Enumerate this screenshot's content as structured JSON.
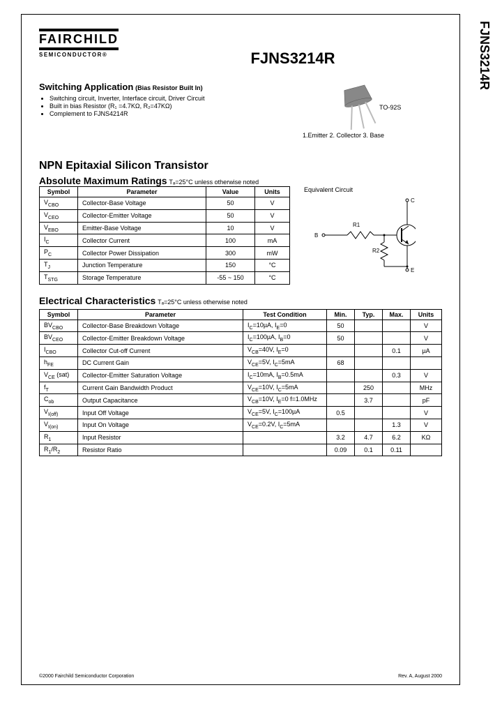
{
  "side_label": "FJNS3214R",
  "logo": {
    "name": "FAIRCHILD",
    "sub": "SEMICONDUCTOR®"
  },
  "part_number": "FJNS3214R",
  "application": {
    "heading": "Switching Application",
    "sub": "(Bias Resistor Built In)",
    "items": [
      "Switching circuit, Inverter, Interface circuit, Driver Circuit",
      "Built in bias Resistor (R₁ =4.7KΩ, R₂=47KΩ)",
      "Complement to FJNS4214R"
    ]
  },
  "package": {
    "name": "TO-92S",
    "pins": "1.Emitter  2. Collector  3. Base"
  },
  "type_heading": "NPN Epitaxial Silicon Transistor",
  "ratings": {
    "heading": "Absolute Maximum Ratings",
    "note": "Tₐ=25°C unless otherwise noted",
    "headers": [
      "Symbol",
      "Parameter",
      "Value",
      "Units"
    ],
    "rows": [
      [
        "V_CBO",
        "Collector-Base Voltage",
        "50",
        "V"
      ],
      [
        "V_CEO",
        "Collector-Emitter Voltage",
        "50",
        "V"
      ],
      [
        "V_EBO",
        "Emitter-Base Voltage",
        "10",
        "V"
      ],
      [
        "I_C",
        "Collector Current",
        "100",
        "mA"
      ],
      [
        "P_C",
        "Collector Power Dissipation",
        "300",
        "mW"
      ],
      [
        "T_J",
        "Junction Temperature",
        "150",
        "°C"
      ],
      [
        "T_STG",
        "Storage Temperature",
        "-55 ~ 150",
        "°C"
      ]
    ]
  },
  "circuit_label": "Equivalent Circuit",
  "elec": {
    "heading": "Electrical Characteristics",
    "note": "Tₐ=25°C unless otherwise noted",
    "headers": [
      "Symbol",
      "Parameter",
      "Test Condition",
      "Min.",
      "Typ.",
      "Max.",
      "Units"
    ],
    "rows": [
      [
        "BV_CBO",
        "Collector-Base Breakdown Voltage",
        "I_C=10µA, I_E=0",
        "50",
        "",
        "",
        "V"
      ],
      [
        "BV_CEO",
        "Collector-Emitter Breakdown Voltage",
        "I_C=100µA, I_B=0",
        "50",
        "",
        "",
        "V"
      ],
      [
        "I_CBO",
        "Collector Cut-off Current",
        "V_CB=40V, I_E=0",
        "",
        "",
        "0.1",
        "µA"
      ],
      [
        "h_FE",
        "DC Current Gain",
        "V_CE=5V, I_C=5mA",
        "68",
        "",
        "",
        ""
      ],
      [
        "V_CE (sat)",
        "Collector-Emitter Saturation Voltage",
        "I_C=10mA, I_B=0.5mA",
        "",
        "",
        "0.3",
        "V"
      ],
      [
        "f_T",
        "Current Gain Bandwidth Product",
        "V_CE=10V, I_C=5mA",
        "",
        "250",
        "",
        "MHz"
      ],
      [
        "C_ob",
        "Output Capacitance",
        "V_CB=10V, I_E=0 f=1.0MHz",
        "",
        "3.7",
        "",
        "pF"
      ],
      [
        "V_I(off)",
        "Input Off Voltage",
        "V_CE=5V, I_C=100µA",
        "0.5",
        "",
        "",
        "V"
      ],
      [
        "V_I(on)",
        "Input On Voltage",
        "V_CE=0.2V, I_C=5mA",
        "",
        "",
        "1.3",
        "V"
      ],
      [
        "R_1",
        "Input Resistor",
        "",
        "3.2",
        "4.7",
        "6.2",
        "KΩ"
      ],
      [
        "R_1/R_2",
        "Resistor Ratio",
        "",
        "0.09",
        "0.1",
        "0.11",
        ""
      ]
    ]
  },
  "footer": {
    "left": "©2000 Fairchild Semiconductor Corporation",
    "right": "Rev. A, August 2000"
  },
  "colors": {
    "pkg_body": "#8a8a8a",
    "pkg_lead": "#cccccc"
  }
}
